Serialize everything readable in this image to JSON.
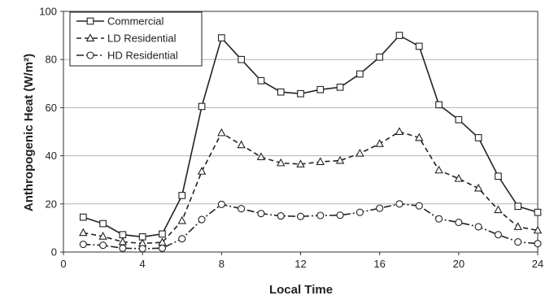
{
  "chart_data": {
    "type": "line",
    "title": "",
    "xlabel": "Local Time",
    "ylabel": "Anthropogenic Heat (W/m²)",
    "xlim": [
      0,
      24
    ],
    "ylim": [
      0,
      100
    ],
    "x_ticks": [
      "0",
      "4",
      "8",
      "12",
      "16",
      "20",
      "24"
    ],
    "y_ticks": [
      "0",
      "20",
      "40",
      "60",
      "80",
      "100"
    ],
    "grid": "horizontal",
    "legend_position": "top-left",
    "x": [
      1,
      2,
      3,
      4,
      5,
      6,
      7,
      8,
      9,
      10,
      11,
      12,
      13,
      14,
      15,
      16,
      17,
      18,
      19,
      20,
      21,
      22,
      23,
      24
    ],
    "series": [
      {
        "name": "Commercial",
        "marker": "square",
        "line_style": "solid",
        "color": "#222222",
        "values": [
          14.5,
          11.8,
          7.2,
          6.3,
          7.5,
          23.5,
          60.5,
          89,
          80,
          71.2,
          66.5,
          65.8,
          67.5,
          68.5,
          74,
          81,
          90,
          85.5,
          61.2,
          55,
          47.5,
          31.5,
          19,
          16.5
        ]
      },
      {
        "name": "LD Residential",
        "marker": "triangle",
        "line_style": "dashed",
        "color": "#222222",
        "values": [
          8,
          6.5,
          4.2,
          3.6,
          4,
          13,
          33.5,
          49.5,
          44.5,
          39.5,
          37,
          36.5,
          37.5,
          38,
          41,
          45,
          50,
          47.5,
          34,
          30.5,
          26.5,
          17.5,
          10.5,
          9
        ]
      },
      {
        "name": "HD Residential",
        "marker": "circle",
        "line_style": "dashdot",
        "color": "#222222",
        "values": [
          3.2,
          2.8,
          1.6,
          1.4,
          1.6,
          5.5,
          13.5,
          19.8,
          18,
          16,
          15,
          14.8,
          15.2,
          15.3,
          16.5,
          18.2,
          20,
          19.2,
          13.8,
          12.3,
          10.5,
          7.2,
          4.2,
          3.5
        ]
      }
    ]
  }
}
